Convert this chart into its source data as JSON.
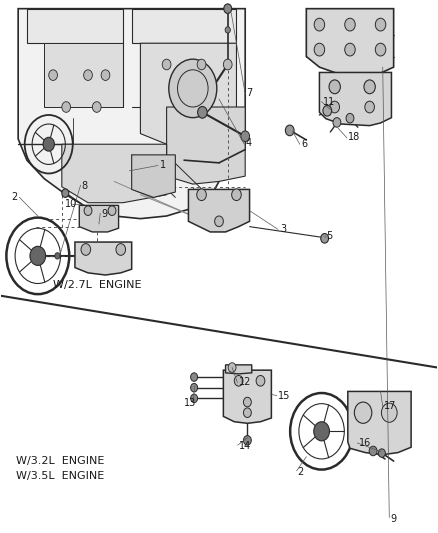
{
  "bg_color": "#ffffff",
  "line_color": "#2a2a2a",
  "text_color": "#1a1a1a",
  "gray_fill": "#c8c8c8",
  "light_gray": "#e0e0e0",
  "labels": {
    "engine_27": "W/2.7L  ENGINE",
    "engine_32": "W/3.2L  ENGINE",
    "engine_35": "W/3.5L  ENGINE"
  },
  "divider_line": [
    [
      0.0,
      0.445
    ],
    [
      1.0,
      0.31
    ]
  ],
  "font_size": 7.0,
  "label_font_size": 8.0,
  "figsize": [
    4.38,
    5.33
  ],
  "dpi": 100,
  "part_labels": {
    "1": [
      0.365,
      0.69,
      "1"
    ],
    "2_top": [
      0.025,
      0.63,
      "2"
    ],
    "3": [
      0.64,
      0.575,
      "3"
    ],
    "4": [
      0.565,
      0.73,
      "4"
    ],
    "5": [
      0.745,
      0.56,
      "5"
    ],
    "6": [
      0.685,
      0.73,
      "6"
    ],
    "7": [
      0.56,
      0.825,
      "7"
    ],
    "8": [
      0.185,
      0.655,
      "8"
    ],
    "9": [
      0.23,
      0.6,
      "9"
    ],
    "10": [
      0.15,
      0.62,
      "10"
    ],
    "11": [
      0.74,
      0.81,
      "11"
    ],
    "18": [
      0.795,
      0.745,
      "18"
    ],
    "9top": [
      0.89,
      0.025,
      "9"
    ],
    "12": [
      0.54,
      0.28,
      "12"
    ],
    "13": [
      0.42,
      0.245,
      "13"
    ],
    "14": [
      0.54,
      0.165,
      "14"
    ],
    "15": [
      0.63,
      0.255,
      "15"
    ],
    "16": [
      0.82,
      0.17,
      "16"
    ],
    "17": [
      0.875,
      0.235,
      "17"
    ],
    "2_bot": [
      0.68,
      0.115,
      "2"
    ]
  }
}
